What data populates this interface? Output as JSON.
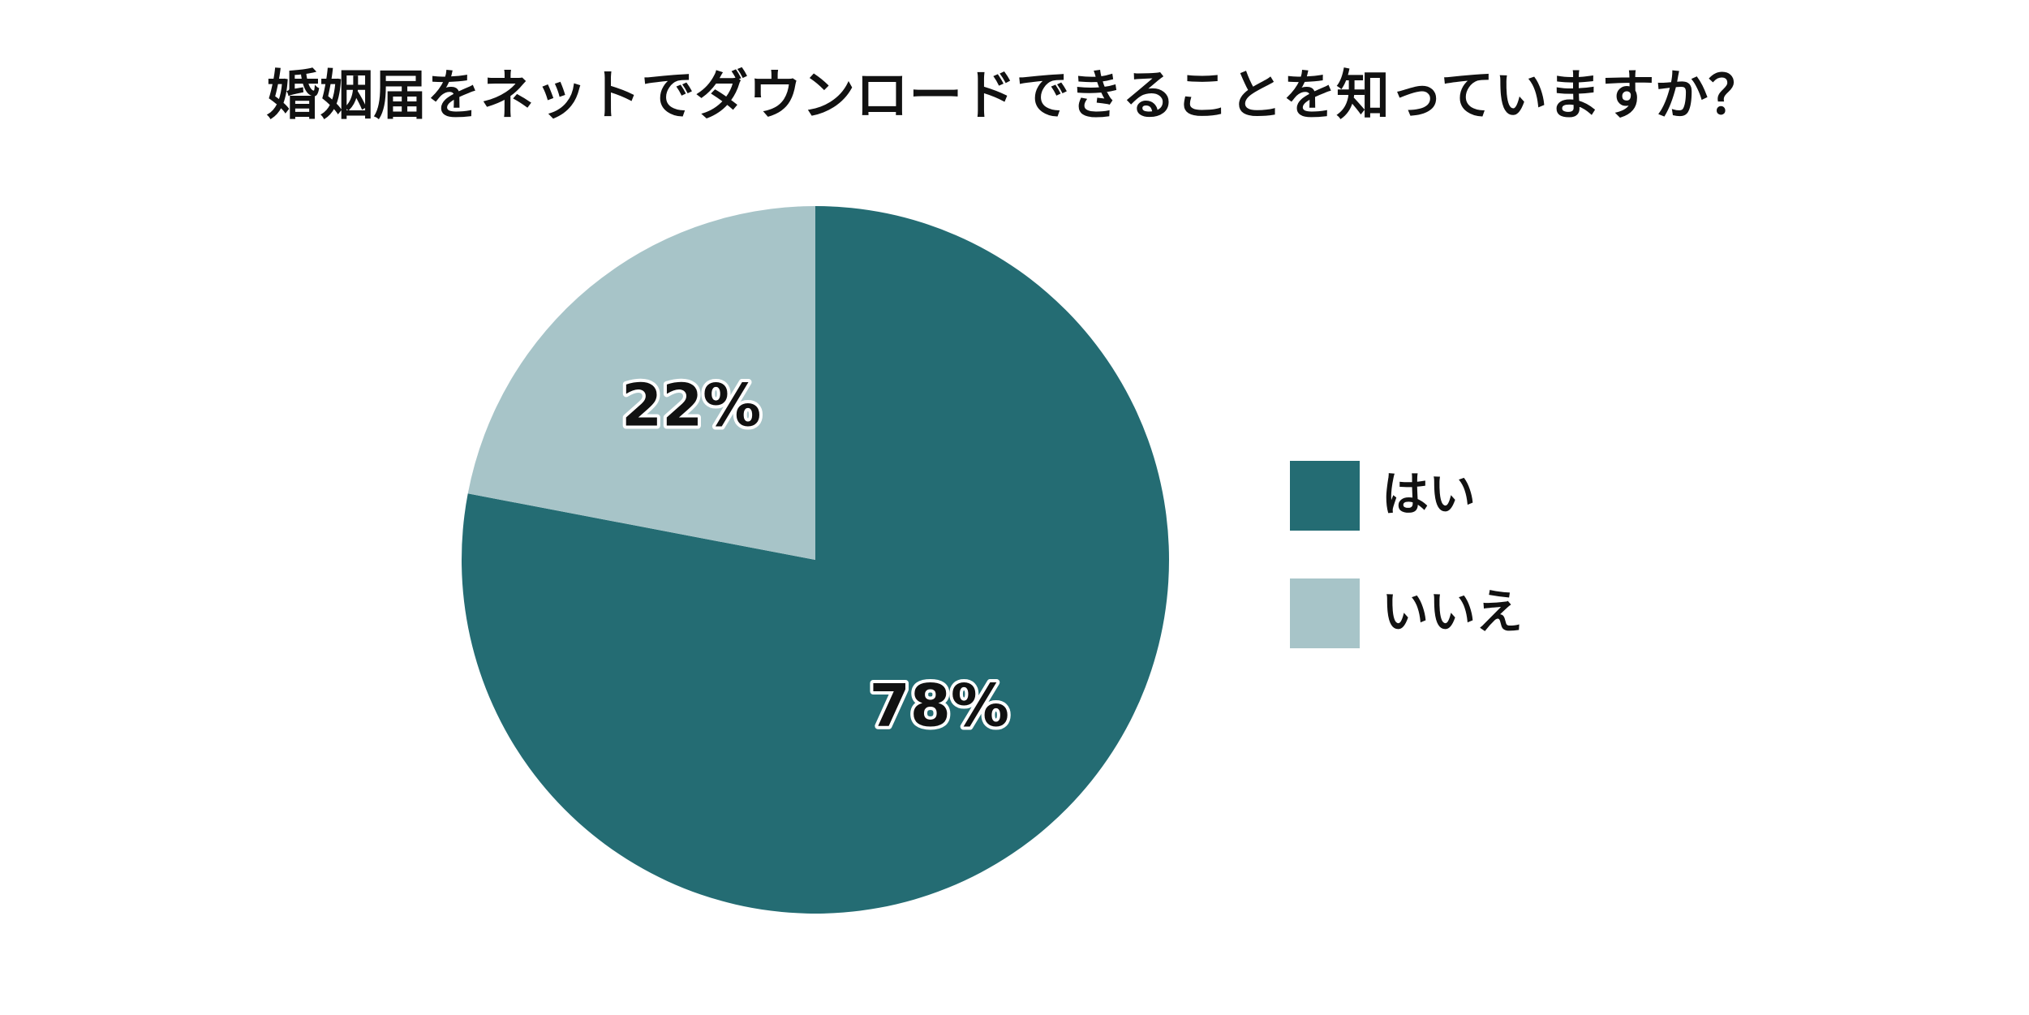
{
  "chart_data": {
    "type": "pie",
    "title": "婚姻届をネットでダウンロードできることを知っていますか？",
    "categories": [
      "はい",
      "いいえ"
    ],
    "values": [
      78,
      22
    ],
    "value_labels": [
      "78%",
      "22%"
    ],
    "colors": [
      "#246c73",
      "#a7c4c8"
    ],
    "legend": "right"
  }
}
